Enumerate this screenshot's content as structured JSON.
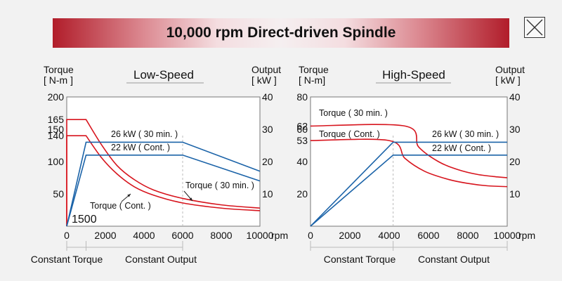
{
  "page": {
    "title": "10,000 rpm Direct-driven Spindle",
    "close_icon": "close-icon"
  },
  "colors": {
    "torque": "#d7141d",
    "output": "#1b63a8",
    "axis": "#777777",
    "grid": "#bbbbbb",
    "text": "#111111"
  },
  "chart_data": [
    {
      "type": "line",
      "title": "Low-Speed",
      "ylabel_left": "Torque\n[ N-m ]",
      "ylabel_right": "Output\n[ kW ]",
      "x_unit": "rpm",
      "xlim": [
        0,
        10000
      ],
      "ylim_left": [
        0,
        200
      ],
      "ylim_right": [
        0,
        40
      ],
      "x_ticks": [
        0,
        2000,
        4000,
        6000,
        8000,
        10000
      ],
      "x_tick_labels": [
        "0",
        "2000",
        "4000",
        "6000",
        "8000",
        "10000"
      ],
      "y_ticks_left": [
        50,
        100,
        140,
        150,
        165,
        200
      ],
      "y_ticks_right": [
        10,
        20,
        30,
        40
      ],
      "base_speed_label": "1500",
      "zone_labels": [
        "Constant Torque",
        "Constant Output"
      ],
      "zone_breaks": [
        0,
        1000,
        6000
      ],
      "series": [
        {
          "name": "Torque ( 30 min. )",
          "axis": "left",
          "color": "torque",
          "x": [
            1000,
            1800,
            2600,
            3500,
            4500,
            6000,
            8000,
            10000
          ],
          "y": [
            165,
            126,
            94,
            72,
            56,
            43,
            33,
            28
          ]
        },
        {
          "name": "Torque ( Cont. )",
          "axis": "left",
          "color": "torque",
          "x": [
            1000,
            1800,
            2600,
            3500,
            4500,
            6000,
            8000,
            10000
          ],
          "y": [
            140,
            106,
            81,
            61,
            48,
            36,
            28,
            24
          ]
        },
        {
          "name": "26 kW ( 30 min. )",
          "axis": "right",
          "color": "output",
          "x": [
            0,
            1000,
            6000,
            10000
          ],
          "y": [
            0,
            26,
            26,
            17
          ]
        },
        {
          "name": "22 kW  ( Cont. )",
          "axis": "right",
          "color": "output",
          "x": [
            0,
            1000,
            6000,
            10000
          ],
          "y": [
            0,
            22,
            22,
            14
          ]
        }
      ],
      "annotations": [
        "26 kW ( 30 min. )",
        "22 kW  ( Cont. )",
        "Torque ( 30 min. )",
        "Torque ( Cont. )"
      ]
    },
    {
      "type": "line",
      "title": "High-Speed",
      "ylabel_left": "Torque\n[ N-m]",
      "ylabel_right": "Output\n[ kW ]",
      "x_unit": "rpm",
      "xlim": [
        0,
        10000
      ],
      "ylim_left": [
        0,
        80
      ],
      "ylim_right": [
        0,
        40
      ],
      "x_ticks": [
        0,
        2000,
        4000,
        6000,
        8000,
        10000
      ],
      "x_tick_labels": [
        "0",
        "2000",
        "4000",
        "6000",
        "8000",
        "10000"
      ],
      "y_ticks_left": [
        20,
        40,
        53,
        60,
        62,
        80
      ],
      "y_ticks_right": [
        10,
        20,
        30,
        40
      ],
      "zone_labels": [
        "Constant Torque",
        "Constant Output"
      ],
      "zone_breaks": [
        0,
        4200,
        10000
      ],
      "series": [
        {
          "name": "Torque ( 30 min. )",
          "axis": "left",
          "color": "torque",
          "x": [
            0,
            4800,
            5500,
            6500,
            7500,
            8500,
            9500,
            10000
          ],
          "y": [
            62,
            62,
            49,
            40,
            35,
            32,
            30.5,
            30
          ]
        },
        {
          "name": "Torque ( Cont. )",
          "axis": "left",
          "color": "torque",
          "x": [
            0,
            4000,
            4800,
            5800,
            7000,
            8000,
            9000,
            10000
          ],
          "y": [
            53,
            53,
            42,
            34,
            29,
            26.5,
            25,
            24.5
          ]
        },
        {
          "name": "26 kW ( 30 min. )",
          "axis": "right",
          "color": "output",
          "x": [
            0,
            4200,
            10000
          ],
          "y": [
            0,
            26,
            26
          ]
        },
        {
          "name": "22 kW ( Cont. )",
          "axis": "right",
          "color": "output",
          "x": [
            0,
            4200,
            10000
          ],
          "y": [
            0,
            22,
            22
          ]
        }
      ],
      "annotations": [
        "Torque ( 30 min. )",
        "Torque ( Cont. )",
        "26 kW ( 30 min. )",
        "22 kW ( Cont. )"
      ]
    }
  ]
}
